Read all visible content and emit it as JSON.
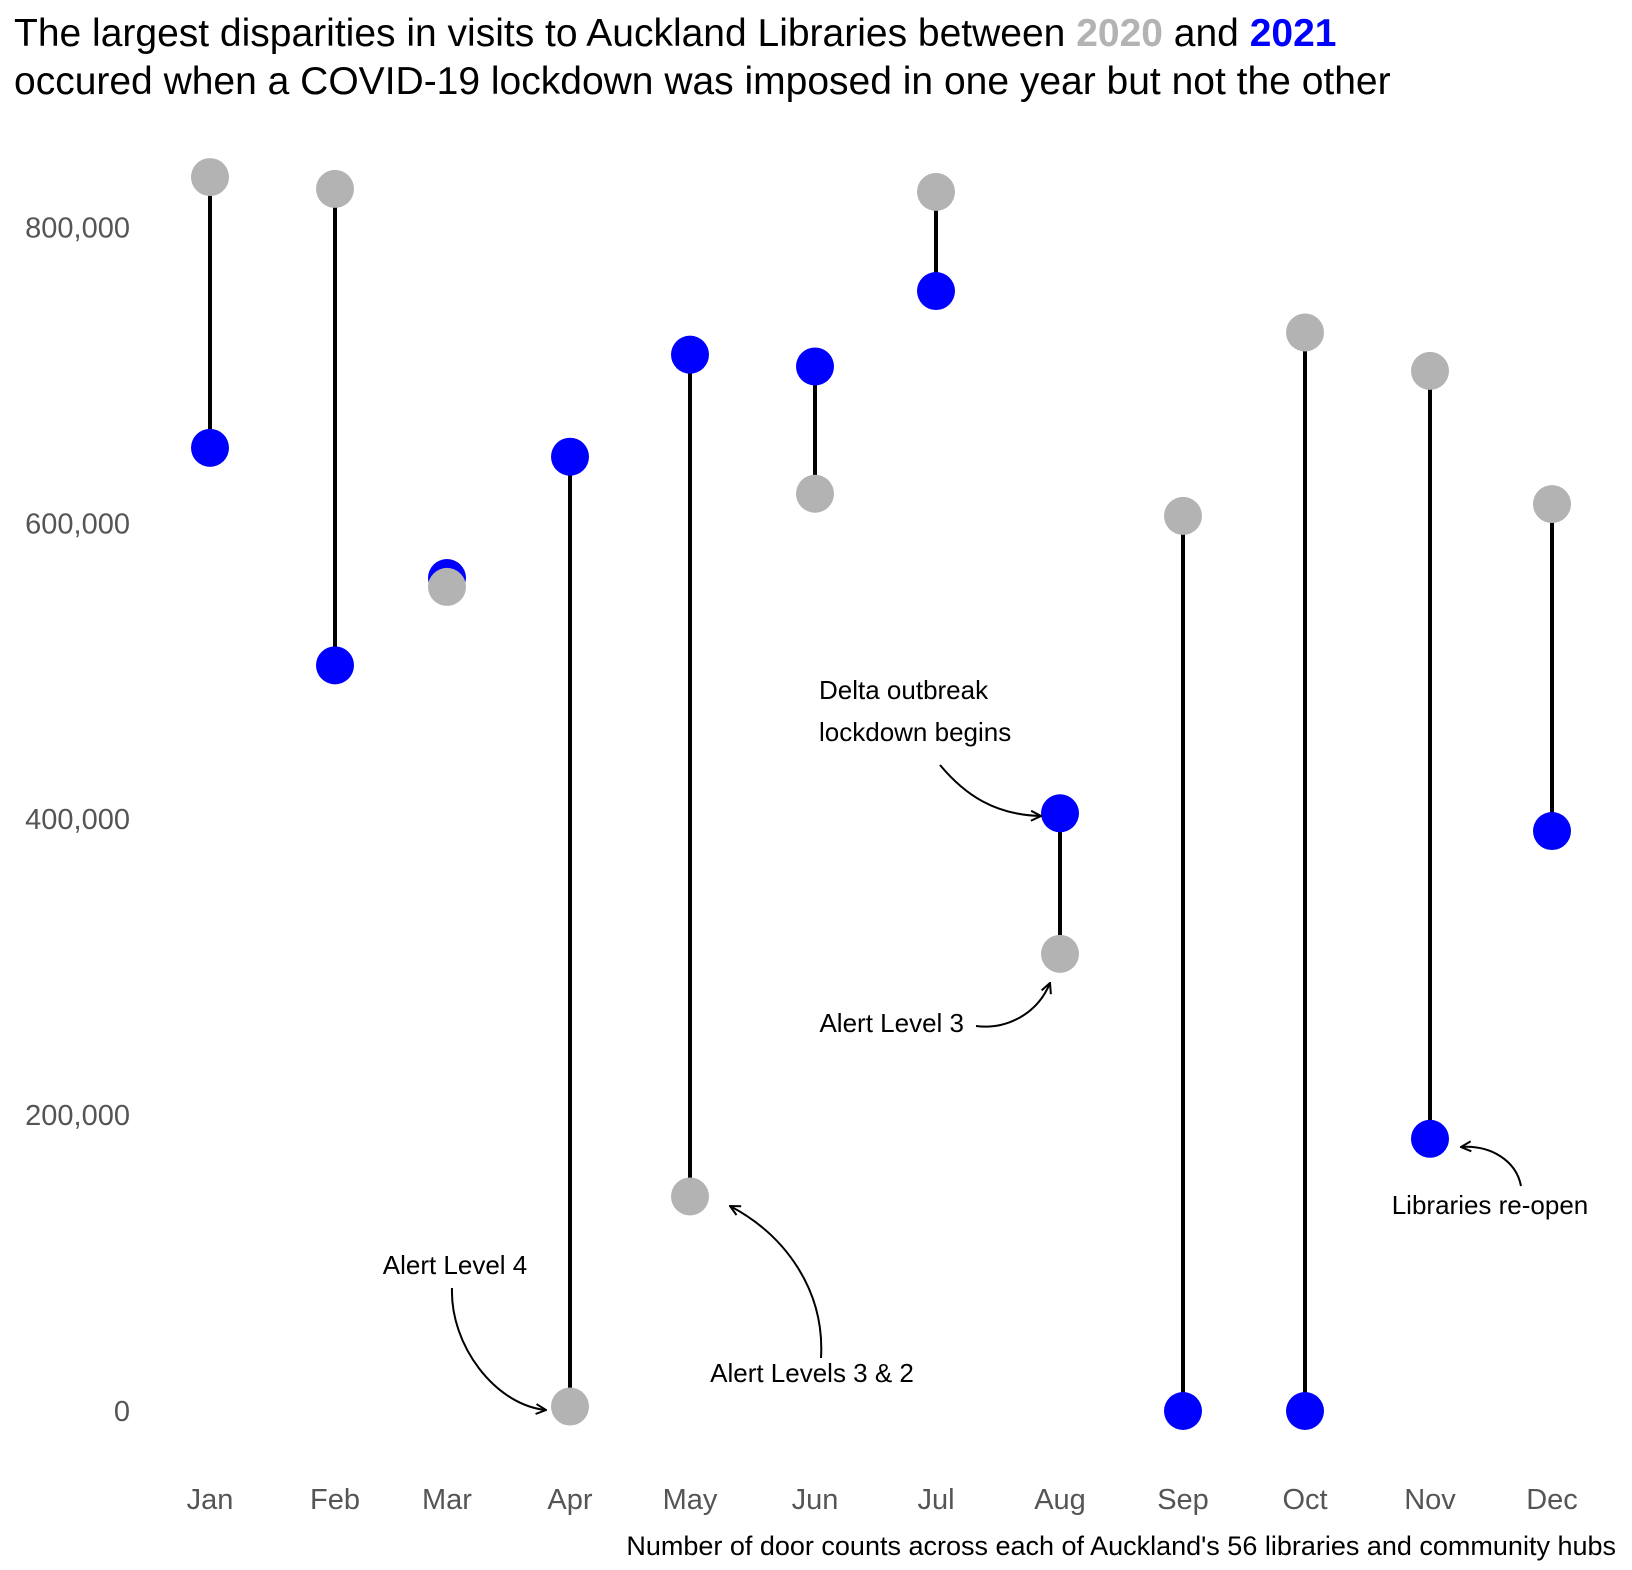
{
  "title": {
    "line1_prefix": "The largest disparities in visits to Auckland Libraries between ",
    "year_a": "2020",
    "line1_mid": " and ",
    "year_b": "2021",
    "line2": "occured when a COVID-19 lockdown was imposed in one year but not the other"
  },
  "caption": "Number of door counts across each of Auckland's 56 libraries and community hubs",
  "colors": {
    "y2020": "#b3b3b3",
    "y2021": "#0000ff",
    "segment": "#000000"
  },
  "chart_data": {
    "type": "dumbbell",
    "categories": [
      "Jan",
      "Feb",
      "Mar",
      "Apr",
      "May",
      "Jun",
      "Jul",
      "Aug",
      "Sep",
      "Oct",
      "Nov",
      "Dec"
    ],
    "series": [
      {
        "name": "2020",
        "values": [
          834000,
          826000,
          557000,
          3000,
          145000,
          620000,
          824000,
          309000,
          605000,
          729000,
          703000,
          613000
        ]
      },
      {
        "name": "2021",
        "values": [
          651000,
          504000,
          563000,
          645000,
          714000,
          706000,
          757000,
          404000,
          0,
          0,
          184000,
          392000
        ]
      }
    ],
    "ylim": [
      0,
      850000
    ],
    "yticks": [
      0,
      200000,
      400000,
      600000,
      800000
    ],
    "ytick_labels": [
      "0",
      "200,000",
      "400,000",
      "600,000",
      "800,000"
    ],
    "grid": false,
    "legend": "none (years colored in title)",
    "annotations": [
      {
        "text": [
          "Alert Level 4"
        ],
        "month": "Apr",
        "series": "2020"
      },
      {
        "text": [
          "Alert Levels 3 & 2"
        ],
        "month": "May",
        "series": "2020"
      },
      {
        "text": [
          "Delta outbreak",
          "lockdown begins"
        ],
        "month": "Aug",
        "series": "2021"
      },
      {
        "text": [
          "Alert Level 3"
        ],
        "month": "Aug",
        "series": "2020"
      },
      {
        "text": [
          "Libraries re-open"
        ],
        "month": "Nov",
        "series": "2021"
      }
    ]
  }
}
